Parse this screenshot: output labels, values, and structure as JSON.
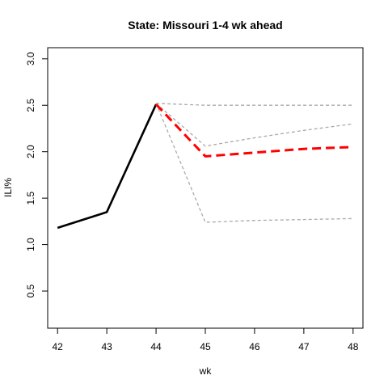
{
  "chart_data": {
    "type": "line",
    "title": "State: Missouri 1-4 wk ahead",
    "xlabel": "wk",
    "ylabel": "ILI%",
    "xlim": [
      41.8,
      48.2
    ],
    "ylim": [
      0.1,
      3.12
    ],
    "x_ticks": [
      42,
      43,
      44,
      45,
      46,
      47,
      48
    ],
    "x_tick_labels": [
      "42",
      "43",
      "44",
      "45",
      "46",
      "47",
      "48"
    ],
    "y_ticks": [
      0.5,
      1.0,
      1.5,
      2.0,
      2.5,
      3.0
    ],
    "y_tick_labels": [
      "0.5",
      "1.0",
      "1.5",
      "2.0",
      "2.5",
      "3.0"
    ],
    "grid": false,
    "series": [
      {
        "role": "observed",
        "color": "#000000",
        "style": "solid",
        "x": [
          42,
          43,
          44
        ],
        "y": [
          1.18,
          1.35,
          2.51
        ]
      },
      {
        "role": "upper",
        "color": "#aaaaaa",
        "style": "dashed",
        "x": [
          44,
          45,
          46,
          47,
          48
        ],
        "y": [
          2.52,
          2.5,
          2.5,
          2.5,
          2.5
        ]
      },
      {
        "role": "upper-mid",
        "color": "#aaaaaa",
        "style": "dashed",
        "x": [
          44,
          45,
          46,
          47,
          48
        ],
        "y": [
          2.52,
          2.06,
          2.15,
          2.23,
          2.3
        ]
      },
      {
        "role": "lower",
        "color": "#aaaaaa",
        "style": "dashed",
        "x": [
          44,
          45,
          46,
          47,
          48
        ],
        "y": [
          2.52,
          1.24,
          1.26,
          1.27,
          1.28
        ]
      },
      {
        "role": "forecast",
        "color": "#ff0000",
        "style": "dashed",
        "x": [
          44,
          45,
          46,
          47,
          48
        ],
        "y": [
          2.51,
          1.95,
          1.99,
          2.03,
          2.05
        ]
      }
    ]
  }
}
